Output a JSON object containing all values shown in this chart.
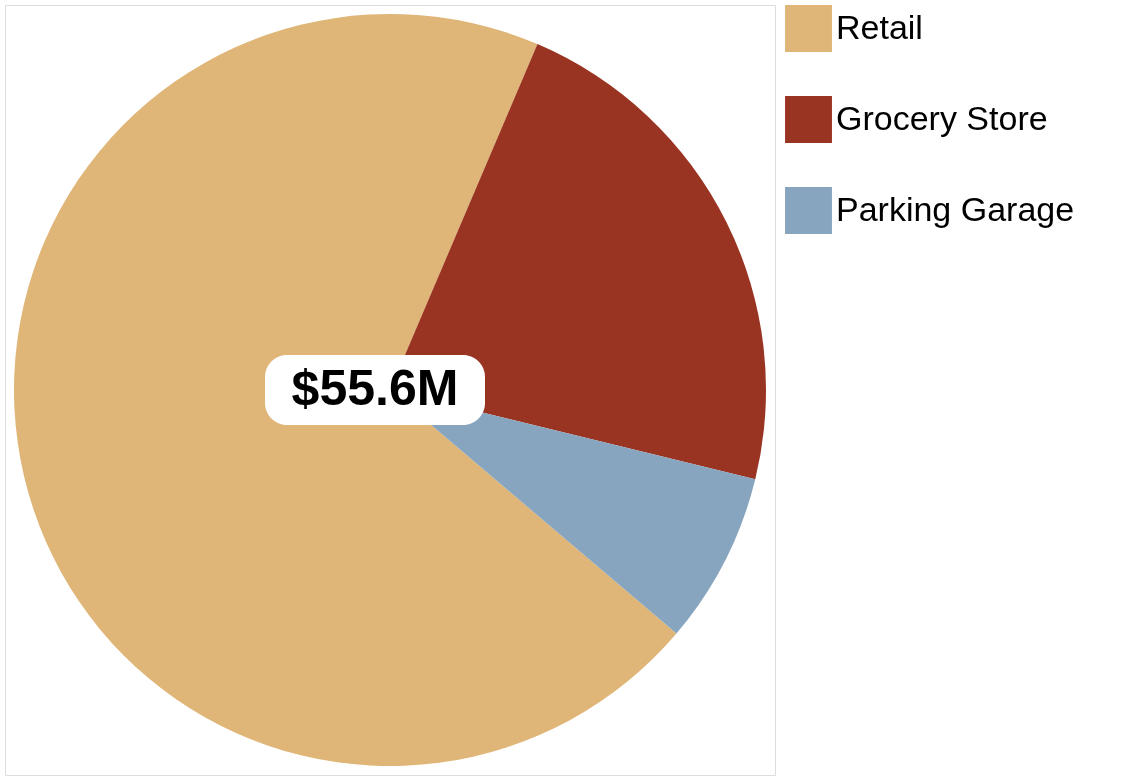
{
  "chart_data": {
    "type": "pie",
    "categories": [
      "Retail",
      "Grocery Store",
      "Parking Garage"
    ],
    "values": [
      70.2,
      22.4,
      7.4
    ],
    "colors": [
      "#dfb677",
      "#993322",
      "#87a5bf"
    ],
    "annotations": [
      "$55.6M"
    ],
    "legend": "right"
  }
}
